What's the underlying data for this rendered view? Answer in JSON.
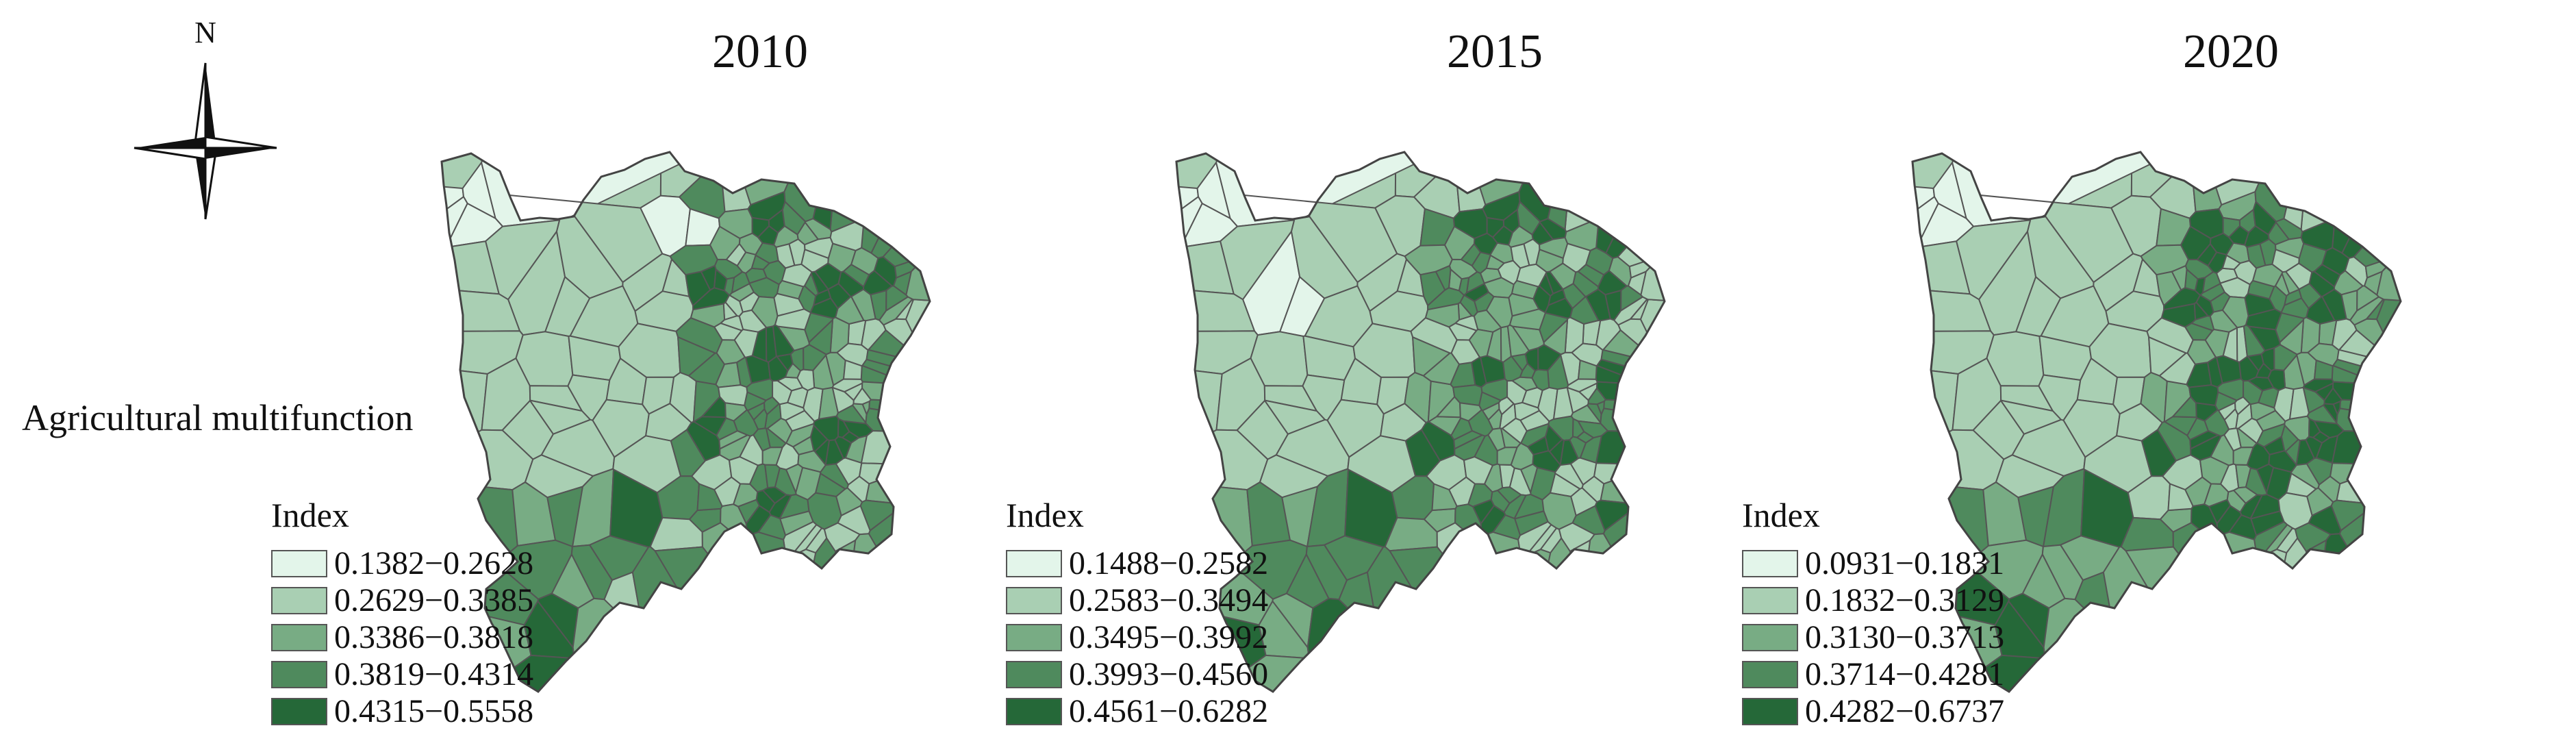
{
  "row_title": "Agricultural multifunction",
  "compass": {
    "label": "N"
  },
  "map_colors": {
    "boundary": "#555555",
    "class_1": "#e3f5ea",
    "class_2": "#a9cfb3",
    "class_3": "#78ac84",
    "class_4": "#4f8a5d",
    "class_5": "#256838"
  },
  "panels": [
    {
      "year": "2010",
      "legend": {
        "title": "Index",
        "classes": [
          {
            "label": "0.1382−0.2628",
            "color": "#e3f5ea"
          },
          {
            "label": "0.2629−0.3385",
            "color": "#a9cfb3"
          },
          {
            "label": "0.3386−0.3818",
            "color": "#78ac84"
          },
          {
            "label": "0.3819−0.4314",
            "color": "#4f8a5d"
          },
          {
            "label": "0.4315−0.5558",
            "color": "#256838"
          }
        ]
      }
    },
    {
      "year": "2015",
      "legend": {
        "title": "Index",
        "classes": [
          {
            "label": "0.1488−0.2582",
            "color": "#e3f5ea"
          },
          {
            "label": "0.2583−0.3494",
            "color": "#a9cfb3"
          },
          {
            "label": "0.3495−0.3992",
            "color": "#78ac84"
          },
          {
            "label": "0.3993−0.4560",
            "color": "#4f8a5d"
          },
          {
            "label": "0.4561−0.6282",
            "color": "#256838"
          }
        ]
      }
    },
    {
      "year": "2020",
      "legend": {
        "title": "Index",
        "classes": [
          {
            "label": "0.0931−0.1831",
            "color": "#e3f5ea"
          },
          {
            "label": "0.1832−0.3129",
            "color": "#a9cfb3"
          },
          {
            "label": "0.3130−0.3713",
            "color": "#78ac84"
          },
          {
            "label": "0.3714−0.4281",
            "color": "#4f8a5d"
          },
          {
            "label": "0.4282−0.6737",
            "color": "#256838"
          }
        ]
      }
    }
  ]
}
